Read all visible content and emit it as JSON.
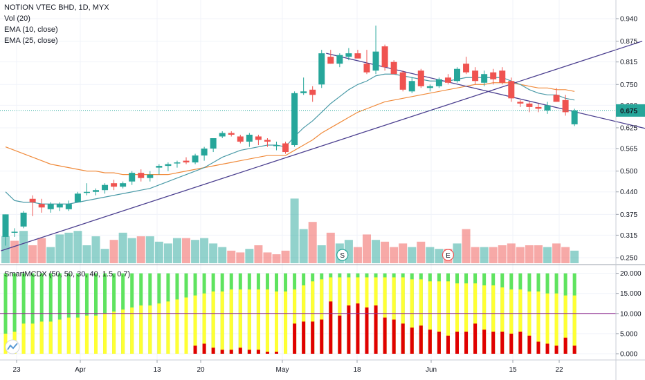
{
  "legend": {
    "symbol": "NOTION VTEC BHD, 1D, MYX",
    "vol": "Vol (20)",
    "ema10": "EMA (10, close)",
    "ema25": "EMA (25, close)",
    "indicator": "SmartMCDX (50, 50, 30, 40, 1.5, 0.7)"
  },
  "price_badge": "0.675",
  "event_markers": [
    "S",
    "E"
  ],
  "colors": {
    "up": "#26a69a",
    "down": "#ef5350",
    "ema10": "#4a9aa7",
    "ema25": "#f08a3a",
    "trend": "#4b3f8f",
    "green": "#5fe35f",
    "yellow": "#ffff33",
    "red": "#e00000",
    "zero_line": "#8e2a8e"
  },
  "chart_data": [
    {
      "type": "candlestick",
      "x_ticks": [
        "23",
        "Apr",
        "13",
        "20",
        "May",
        "18",
        "Jun",
        "15",
        "22"
      ],
      "y_ticks": [
        0.94,
        0.875,
        0.815,
        0.75,
        0.69,
        0.625,
        0.565,
        0.5,
        0.44,
        0.375,
        0.315,
        0.25
      ],
      "ylim": [
        0.22,
        0.96
      ],
      "candles": [
        [
          0.31,
          0.375,
          0.285,
          0.375
        ],
        [
          0.325,
          0.335,
          0.31,
          0.325
        ],
        [
          0.34,
          0.385,
          0.335,
          0.38
        ],
        [
          0.42,
          0.43,
          0.37,
          0.41
        ],
        [
          0.405,
          0.42,
          0.38,
          0.395
        ],
        [
          0.39,
          0.41,
          0.38,
          0.405
        ],
        [
          0.395,
          0.41,
          0.385,
          0.405
        ],
        [
          0.39,
          0.415,
          0.385,
          0.405
        ],
        [
          0.41,
          0.44,
          0.41,
          0.435
        ],
        [
          0.44,
          0.465,
          0.43,
          0.44
        ],
        [
          0.44,
          0.45,
          0.43,
          0.445
        ],
        [
          0.445,
          0.465,
          0.435,
          0.46
        ],
        [
          0.465,
          0.475,
          0.445,
          0.455
        ],
        [
          0.455,
          0.47,
          0.45,
          0.465
        ],
        [
          0.47,
          0.5,
          0.46,
          0.495
        ],
        [
          0.495,
          0.505,
          0.47,
          0.48
        ],
        [
          0.48,
          0.5,
          0.47,
          0.49
        ],
        [
          0.51,
          0.52,
          0.49,
          0.515
        ],
        [
          0.515,
          0.525,
          0.5,
          0.52
        ],
        [
          0.525,
          0.53,
          0.51,
          0.525
        ],
        [
          0.53,
          0.54,
          0.52,
          0.525
        ],
        [
          0.525,
          0.55,
          0.52,
          0.545
        ],
        [
          0.545,
          0.57,
          0.53,
          0.565
        ],
        [
          0.565,
          0.595,
          0.555,
          0.595
        ],
        [
          0.6,
          0.615,
          0.595,
          0.61
        ],
        [
          0.61,
          0.615,
          0.6,
          0.605
        ],
        [
          0.6,
          0.605,
          0.58,
          0.585
        ],
        [
          0.585,
          0.61,
          0.57,
          0.605
        ],
        [
          0.6,
          0.605,
          0.575,
          0.59
        ],
        [
          0.59,
          0.595,
          0.57,
          0.585
        ],
        [
          0.575,
          0.585,
          0.56,
          0.575
        ],
        [
          0.58,
          0.585,
          0.55,
          0.555
        ],
        [
          0.575,
          0.73,
          0.57,
          0.725
        ],
        [
          0.725,
          0.77,
          0.72,
          0.73
        ],
        [
          0.735,
          0.745,
          0.7,
          0.72
        ],
        [
          0.75,
          0.85,
          0.74,
          0.84
        ],
        [
          0.83,
          0.85,
          0.81,
          0.81
        ],
        [
          0.81,
          0.84,
          0.8,
          0.835
        ],
        [
          0.83,
          0.855,
          0.82,
          0.84
        ],
        [
          0.84,
          0.85,
          0.83,
          0.825
        ],
        [
          0.81,
          0.85,
          0.78,
          0.785
        ],
        [
          0.79,
          0.92,
          0.78,
          0.845
        ],
        [
          0.86,
          0.865,
          0.79,
          0.8
        ],
        [
          0.815,
          0.82,
          0.78,
          0.78
        ],
        [
          0.785,
          0.79,
          0.73,
          0.735
        ],
        [
          0.73,
          0.77,
          0.725,
          0.76
        ],
        [
          0.79,
          0.795,
          0.74,
          0.745
        ],
        [
          0.74,
          0.75,
          0.73,
          0.745
        ],
        [
          0.745,
          0.77,
          0.74,
          0.765
        ],
        [
          0.77,
          0.78,
          0.75,
          0.755
        ],
        [
          0.76,
          0.8,
          0.755,
          0.795
        ],
        [
          0.81,
          0.83,
          0.78,
          0.785
        ],
        [
          0.79,
          0.8,
          0.75,
          0.76
        ],
        [
          0.755,
          0.79,
          0.745,
          0.78
        ],
        [
          0.785,
          0.795,
          0.75,
          0.765
        ],
        [
          0.79,
          0.8,
          0.75,
          0.755
        ],
        [
          0.76,
          0.77,
          0.7,
          0.71
        ],
        [
          0.7,
          0.705,
          0.685,
          0.695
        ],
        [
          0.695,
          0.7,
          0.67,
          0.685
        ],
        [
          0.685,
          0.695,
          0.67,
          0.68
        ],
        [
          0.675,
          0.7,
          0.665,
          0.69
        ],
        [
          0.72,
          0.74,
          0.7,
          0.7
        ],
        [
          0.705,
          0.72,
          0.66,
          0.67
        ],
        [
          0.635,
          0.68,
          0.63,
          0.675
        ]
      ],
      "ema10": [
        0.44,
        0.415,
        0.41,
        0.41,
        0.405,
        0.405,
        0.405,
        0.405,
        0.41,
        0.415,
        0.42,
        0.425,
        0.43,
        0.435,
        0.44,
        0.445,
        0.45,
        0.46,
        0.47,
        0.48,
        0.49,
        0.5,
        0.51,
        0.525,
        0.54,
        0.55,
        0.56,
        0.565,
        0.57,
        0.575,
        0.575,
        0.57,
        0.6,
        0.625,
        0.645,
        0.67,
        0.695,
        0.715,
        0.735,
        0.75,
        0.76,
        0.775,
        0.78,
        0.78,
        0.775,
        0.77,
        0.765,
        0.76,
        0.76,
        0.76,
        0.765,
        0.77,
        0.77,
        0.77,
        0.77,
        0.77,
        0.76,
        0.75,
        0.735,
        0.725,
        0.72,
        0.72,
        0.71,
        0.705
      ],
      "ema25": [
        0.57,
        0.56,
        0.55,
        0.54,
        0.53,
        0.52,
        0.515,
        0.51,
        0.505,
        0.5,
        0.5,
        0.495,
        0.495,
        0.49,
        0.49,
        0.49,
        0.49,
        0.49,
        0.49,
        0.495,
        0.5,
        0.505,
        0.51,
        0.515,
        0.52,
        0.525,
        0.53,
        0.535,
        0.54,
        0.545,
        0.545,
        0.545,
        0.56,
        0.575,
        0.59,
        0.61,
        0.625,
        0.64,
        0.655,
        0.67,
        0.68,
        0.69,
        0.7,
        0.705,
        0.71,
        0.715,
        0.72,
        0.725,
        0.73,
        0.735,
        0.74,
        0.745,
        0.75,
        0.75,
        0.755,
        0.755,
        0.755,
        0.75,
        0.745,
        0.74,
        0.74,
        0.735,
        0.735,
        0.73
      ],
      "trendlines": [
        {
          "from": [
            -0.5,
            0.27
          ],
          "to": [
            70.5,
            0.875
          ]
        },
        {
          "from": [
            35.5,
            0.84
          ],
          "to": [
            79.5,
            0.57
          ]
        }
      ],
      "current_price": 0.675
    },
    {
      "type": "bar",
      "name": "volume",
      "values": [
        30,
        25,
        36,
        20,
        28,
        18,
        32,
        34,
        36,
        20,
        30,
        16,
        26,
        34,
        28,
        30,
        30,
        24,
        22,
        28,
        28,
        26,
        28,
        22,
        18,
        14,
        12,
        16,
        20,
        12,
        10,
        14,
        72,
        38,
        46,
        20,
        34,
        22,
        26,
        18,
        32,
        26,
        24,
        18,
        22,
        18,
        24,
        18,
        16,
        16,
        22,
        38,
        18,
        18,
        18,
        20,
        22,
        18,
        20,
        20,
        18,
        22,
        18,
        14
      ],
      "up": [
        1,
        0,
        1,
        0,
        0,
        1,
        1,
        1,
        1,
        1,
        1,
        1,
        0,
        1,
        1,
        0,
        1,
        1,
        1,
        1,
        0,
        1,
        1,
        1,
        1,
        0,
        0,
        1,
        0,
        0,
        0,
        0,
        1,
        1,
        0,
        1,
        0,
        1,
        1,
        0,
        0,
        1,
        0,
        0,
        0,
        1,
        0,
        1,
        1,
        0,
        1,
        0,
        0,
        1,
        0,
        0,
        0,
        0,
        0,
        0,
        1,
        0,
        0,
        1
      ]
    },
    {
      "type": "bar",
      "name": "SmartMCDX",
      "y_ticks": [
        20,
        15,
        10,
        5,
        0
      ],
      "ylim": [
        -1,
        21
      ],
      "zero_line_value": 10,
      "green": [
        20,
        20,
        20,
        20,
        20,
        20,
        20,
        20,
        20,
        20,
        20,
        20,
        20,
        20,
        20,
        20,
        20,
        20,
        20,
        20,
        20,
        20,
        20,
        20,
        20,
        20,
        20,
        20,
        20,
        20,
        20,
        20,
        20,
        20,
        20,
        20,
        20,
        20,
        20,
        20,
        20,
        20,
        20,
        20,
        20,
        20,
        20,
        20,
        20,
        20,
        20,
        20,
        20,
        20,
        20,
        20,
        20,
        20,
        20,
        20,
        20,
        20,
        20,
        20
      ],
      "yellow": [
        5,
        5.5,
        7.5,
        7.5,
        8,
        8,
        8.5,
        9,
        9,
        9.5,
        9.5,
        10,
        10.5,
        11,
        11.5,
        12,
        12,
        12.5,
        13,
        13.5,
        14,
        14.5,
        15,
        15.5,
        15.5,
        16,
        16,
        16,
        16,
        16,
        15.5,
        15.5,
        16,
        17,
        18,
        18.5,
        19,
        19,
        19,
        19,
        19,
        19,
        19,
        19,
        19,
        18.5,
        18.5,
        18,
        18,
        18,
        17.5,
        17.5,
        17.5,
        17,
        17,
        16.5,
        16,
        16,
        15.5,
        15.5,
        15,
        15,
        14.5,
        14.5
      ],
      "red": [
        0,
        0,
        0,
        0,
        0,
        0,
        0,
        0,
        0,
        0,
        0,
        0,
        0,
        0,
        0,
        0,
        0,
        0,
        0,
        0,
        0,
        2,
        2.5,
        1.5,
        1,
        1,
        1.5,
        1,
        1,
        0.5,
        0.5,
        0,
        7.5,
        8,
        8,
        8.5,
        13,
        9.5,
        12,
        12.5,
        11.5,
        12,
        9,
        8.5,
        7.5,
        6.5,
        7,
        6,
        5.5,
        4.5,
        5.5,
        5.5,
        7.5,
        6,
        5.5,
        5.5,
        5,
        5.5,
        4.5,
        3,
        2.5,
        2,
        4,
        2
      ]
    }
  ]
}
